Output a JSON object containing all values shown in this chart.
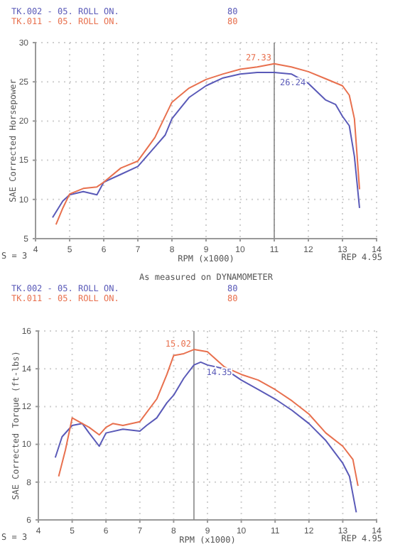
{
  "chart_data": [
    {
      "type": "line",
      "xlabel": "RPM (x1000)",
      "ylabel": "SAE Corrected Horsepower",
      "xlim": [
        4,
        14
      ],
      "xticks": [
        4,
        5,
        6,
        7,
        8,
        9,
        10,
        11,
        12,
        13,
        14
      ],
      "ylim": [
        5,
        30
      ],
      "yticks": [
        5,
        10,
        15,
        20,
        25,
        30
      ],
      "grid": true,
      "legend": "top left",
      "marker": "none",
      "line_style": "solid",
      "ref_lines": [
        {
          "axis": "x",
          "value": 11,
          "color": "#888888"
        }
      ],
      "series": [
        {
          "name": "TK.002 - 05. ROLL ON.",
          "color": "#5a5ab8",
          "x": [
            4.5,
            4.8,
            5.0,
            5.4,
            5.8,
            6.0,
            6.5,
            7.0,
            7.5,
            7.8,
            8.0,
            8.5,
            9.0,
            9.5,
            10.0,
            10.5,
            11.0,
            11.5,
            12.0,
            12.5,
            12.8,
            13.0,
            13.2,
            13.35,
            13.5
          ],
          "values": [
            7.7,
            9.8,
            10.6,
            11.0,
            10.6,
            12.2,
            13.2,
            14.2,
            16.7,
            18.2,
            20.3,
            23.0,
            24.5,
            25.5,
            26.0,
            26.2,
            26.2,
            26.0,
            24.8,
            22.7,
            22.1,
            20.6,
            19.4,
            15.5,
            8.9
          ]
        },
        {
          "name": "TK.011 - 05. ROLL ON.",
          "color": "#e8704e",
          "x": [
            4.6,
            4.8,
            5.0,
            5.4,
            5.8,
            6.0,
            6.5,
            7.0,
            7.5,
            8.0,
            8.5,
            9.0,
            9.5,
            10.0,
            10.5,
            11.0,
            11.5,
            12.0,
            12.5,
            13.0,
            13.2,
            13.35,
            13.5
          ],
          "values": [
            6.8,
            8.9,
            10.7,
            11.4,
            11.6,
            12.2,
            14.0,
            14.9,
            17.9,
            22.4,
            24.2,
            25.3,
            26.0,
            26.6,
            26.9,
            27.3,
            26.9,
            26.3,
            25.4,
            24.5,
            23.3,
            20.3,
            11.3
          ]
        }
      ],
      "annotations": [
        "80",
        "80",
        "S = 3",
        "REP 4.95",
        "As measured on DYNAMOMETER",
        {
          "text": "27.33",
          "x": 11,
          "y": 27.33
        },
        {
          "text": "26.24",
          "x": 11,
          "y": 26.24
        }
      ]
    },
    {
      "type": "line",
      "xlabel": "RPM (x1000)",
      "ylabel": "SAE Corrected Torque (ft-lbs)",
      "xlim": [
        4,
        14
      ],
      "xticks": [
        4,
        5,
        6,
        7,
        8,
        9,
        10,
        11,
        12,
        13,
        14
      ],
      "ylim": [
        6,
        16
      ],
      "yticks": [
        6,
        8,
        10,
        12,
        14,
        16
      ],
      "grid": true,
      "legend": "top left",
      "marker": "none",
      "line_style": "solid",
      "ref_lines": [
        {
          "axis": "x",
          "value": 8.6,
          "color": "#888888"
        }
      ],
      "series": [
        {
          "name": "TK.002 - 05. ROLL ON.",
          "color": "#5a5ab8",
          "x": [
            4.5,
            4.7,
            5.0,
            5.3,
            5.5,
            5.8,
            6.0,
            6.5,
            7.0,
            7.2,
            7.5,
            7.8,
            8.0,
            8.3,
            8.6,
            8.8,
            9.0,
            9.5,
            10.0,
            10.5,
            11.0,
            11.5,
            12.0,
            12.5,
            13.0,
            13.2,
            13.4
          ],
          "values": [
            9.3,
            10.4,
            11.0,
            11.1,
            10.6,
            9.9,
            10.6,
            10.8,
            10.7,
            11.0,
            11.4,
            12.2,
            12.6,
            13.5,
            14.2,
            14.35,
            14.2,
            14.0,
            13.4,
            12.9,
            12.4,
            11.8,
            11.1,
            10.2,
            9.0,
            8.3,
            6.4
          ]
        },
        {
          "name": "TK.011 - 05. ROLL ON.",
          "color": "#e8704e",
          "x": [
            4.6,
            4.8,
            5.0,
            5.3,
            5.5,
            5.8,
            6.0,
            6.2,
            6.5,
            7.0,
            7.5,
            7.8,
            8.0,
            8.3,
            8.6,
            9.0,
            9.5,
            10.0,
            10.5,
            11.0,
            11.5,
            12.0,
            12.5,
            13.0,
            13.3,
            13.45
          ],
          "values": [
            8.3,
            9.7,
            11.4,
            11.1,
            10.9,
            10.5,
            10.9,
            11.1,
            11.0,
            11.2,
            12.4,
            13.7,
            14.7,
            14.8,
            15.02,
            14.9,
            14.1,
            13.7,
            13.4,
            12.9,
            12.3,
            11.6,
            10.6,
            9.9,
            9.2,
            7.8
          ]
        }
      ],
      "annotations": [
        "80",
        "80",
        "S = 3",
        "REP 4.95",
        {
          "text": "15.02",
          "x": 8.6,
          "y": 15.02
        },
        {
          "text": "14.35",
          "x": 8.8,
          "y": 14.35
        }
      ]
    }
  ]
}
